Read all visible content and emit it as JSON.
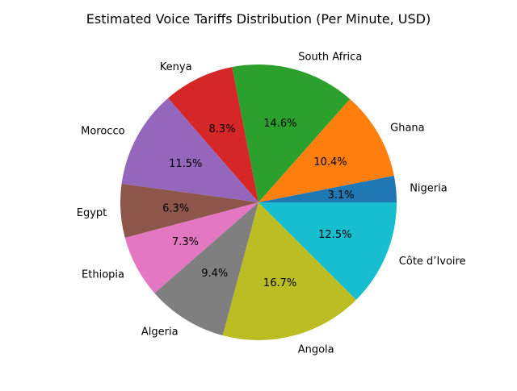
{
  "chart_data": {
    "type": "pie",
    "title": "Estimated Voice Tariffs Distribution (Per Minute, USD)",
    "categories": [
      "Nigeria",
      "Ghana",
      "South Africa",
      "Kenya",
      "Morocco",
      "Egypt",
      "Ethiopia",
      "Algeria",
      "Angola",
      "Côte d’Ivoire"
    ],
    "values": [
      3.1,
      10.4,
      14.6,
      8.3,
      11.5,
      6.3,
      7.3,
      9.4,
      16.7,
      12.5
    ],
    "pct_labels": [
      "3.1%",
      "10.4%",
      "14.6%",
      "8.3%",
      "11.5%",
      "6.3%",
      "7.3%",
      "9.4%",
      "16.7%",
      "12.5%"
    ],
    "colors": [
      "#1f77b4",
      "#ff7f0e",
      "#2ca02c",
      "#d62728",
      "#9467bd",
      "#8c564b",
      "#e377c2",
      "#7f7f7f",
      "#bcbd22",
      "#17becf"
    ],
    "start_angle_deg": 0,
    "direction": "counterclockwise"
  }
}
